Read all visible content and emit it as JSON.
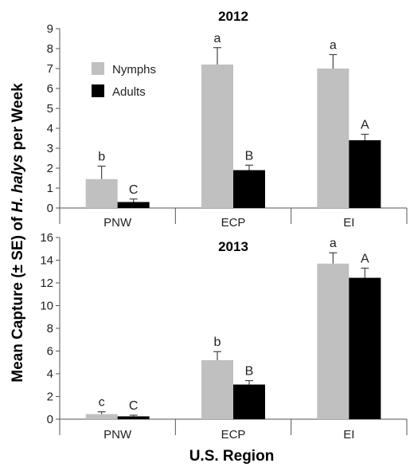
{
  "chart_data": [
    {
      "type": "bar",
      "title": "2012",
      "categories": [
        "PNW",
        "ECP",
        "EI"
      ],
      "ylim": [
        0,
        9
      ],
      "yticks": [
        0,
        1,
        2,
        3,
        4,
        5,
        6,
        7,
        8,
        9
      ],
      "series": [
        {
          "name": "Nymphs",
          "color": "#c0c0c0",
          "values": [
            1.45,
            7.2,
            7.0
          ],
          "errors": [
            0.65,
            0.85,
            0.7
          ],
          "labels": [
            "b",
            "a",
            "a"
          ]
        },
        {
          "name": "Adults",
          "color": "#000000",
          "values": [
            0.3,
            1.9,
            3.4
          ],
          "errors": [
            0.15,
            0.25,
            0.3
          ],
          "labels": [
            "C",
            "B",
            "A"
          ]
        }
      ],
      "legend": "top-left"
    },
    {
      "type": "bar",
      "title": "2013",
      "categories": [
        "PNW",
        "ECP",
        "EI"
      ],
      "ylim": [
        0,
        16
      ],
      "yticks": [
        0,
        2,
        4,
        6,
        8,
        10,
        12,
        14,
        16
      ],
      "series": [
        {
          "name": "Nymphs",
          "color": "#c0c0c0",
          "values": [
            0.45,
            5.2,
            13.7
          ],
          "errors": [
            0.2,
            0.75,
            0.95
          ],
          "labels": [
            "c",
            "b",
            "a"
          ]
        },
        {
          "name": "Adults",
          "color": "#000000",
          "values": [
            0.25,
            3.05,
            12.45
          ],
          "errors": [
            0.1,
            0.35,
            0.85
          ],
          "labels": [
            "C",
            "B",
            "A"
          ]
        }
      ]
    }
  ],
  "ylabel_parts": [
    "Mean Capture (± SE) of ",
    "H. halys",
    " per Week"
  ],
  "xlabel": "U.S. Region"
}
